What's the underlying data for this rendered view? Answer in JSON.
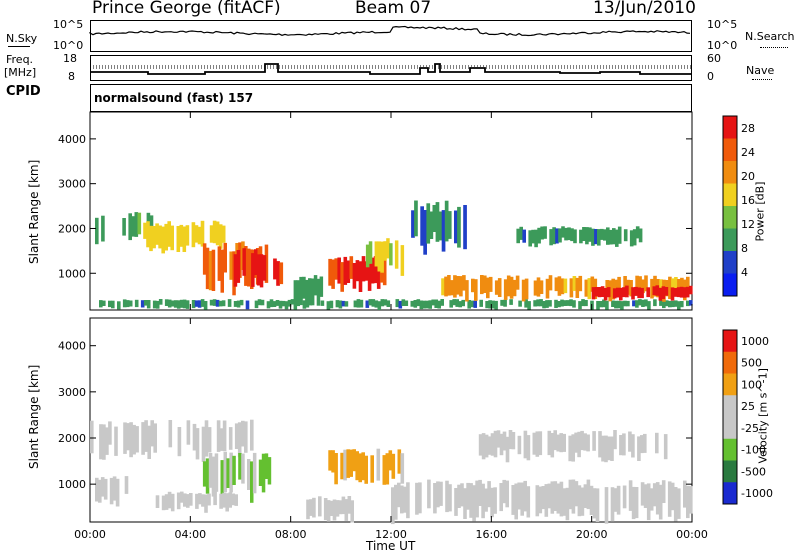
{
  "header": {
    "station": "Prince George (fitACF)",
    "beam": "Beam 07",
    "date": "13/Jun/2010"
  },
  "side_labels": {
    "nsky": "N.Sky",
    "nsearch": "N.Search",
    "freq": "Freq.",
    "freq_unit": "[MHz]",
    "nave": "Nave",
    "cpid": "CPID"
  },
  "noise_axis": {
    "left_top": "10^5",
    "left_bottom": "10^0",
    "right_top": "10^5",
    "right_bottom": "10^0"
  },
  "freq_axis": {
    "left_top": "18",
    "left_bottom": "8",
    "right_top": "60",
    "right_bottom": "0"
  },
  "cpid_text": "normalsound (fast) 157",
  "colors": {
    "power": [
      "#0a1ef0",
      "#2040c8",
      "#3c9a5a",
      "#78c040",
      "#f0d020",
      "#f08c10",
      "#f05a0a",
      "#e61414"
    ],
    "velocity": [
      "#e61414",
      "#f06a0a",
      "#f0a014",
      "#c8c8c8",
      "#c8c8c8",
      "#64c030",
      "#2a7a40",
      "#1a2ad0"
    ],
    "axis": "#000000"
  },
  "chart_data": [
    {
      "type": "heatmap",
      "title": "",
      "xlabel": "Time UT",
      "ylabel": "Slant Range [km]",
      "x_ticks": [
        "00:00",
        "04:00",
        "08:00",
        "12:00",
        "16:00",
        "20:00",
        "00:00"
      ],
      "y_ticks": [
        "1000",
        "2000",
        "3000",
        "4000"
      ],
      "xlim_hours": [
        0,
        24
      ],
      "ylim_km": [
        180,
        4600
      ],
      "colorbar": {
        "label": "Power [dB]",
        "ticks": [
          "4",
          "8",
          "12",
          "16",
          "20",
          "24",
          "28"
        ],
        "range": [
          0,
          30
        ]
      },
      "bands": [
        {
          "t0": 0.2,
          "t1": 2.5,
          "r0": 1700,
          "r1": 2300,
          "value": 10
        },
        {
          "t0": 2.0,
          "t1": 5.5,
          "r0": 1500,
          "r1": 2100,
          "value": 17
        },
        {
          "t0": 4.5,
          "t1": 7.2,
          "r0": 600,
          "r1": 1600,
          "value": 24
        },
        {
          "t0": 5.5,
          "t1": 7.0,
          "r0": 700,
          "r1": 1500,
          "value": 29
        },
        {
          "t0": 7.3,
          "t1": 7.8,
          "r0": 600,
          "r1": 1300,
          "value": 27
        },
        {
          "t0": 8.0,
          "t1": 9.5,
          "r0": 200,
          "r1": 900,
          "value": 9
        },
        {
          "t0": 9.5,
          "t1": 11.8,
          "r0": 600,
          "r1": 1300,
          "value": 26
        },
        {
          "t0": 11.0,
          "t1": 12.5,
          "r0": 1000,
          "r1": 1700,
          "value": 15
        },
        {
          "t0": 0.0,
          "t1": 24.0,
          "r0": 200,
          "r1": 400,
          "value": 9
        },
        {
          "t0": 14.0,
          "t1": 24.0,
          "r0": 400,
          "r1": 900,
          "value": 20
        },
        {
          "t0": 20.0,
          "t1": 24.0,
          "r0": 400,
          "r1": 700,
          "value": 28
        },
        {
          "t0": 12.8,
          "t1": 15.0,
          "r0": 1500,
          "r1": 2500,
          "value": 8
        },
        {
          "t0": 17.0,
          "t1": 22.0,
          "r0": 1600,
          "r1": 2000,
          "value": 9
        }
      ]
    },
    {
      "type": "heatmap",
      "title": "",
      "xlabel": "Time UT",
      "ylabel": "Slant Range [km]",
      "x_ticks": [
        "00:00",
        "04:00",
        "08:00",
        "12:00",
        "16:00",
        "20:00",
        "00:00"
      ],
      "y_ticks": [
        "1000",
        "2000",
        "3000",
        "4000"
      ],
      "xlim_hours": [
        0,
        24
      ],
      "ylim_km": [
        180,
        4600
      ],
      "colorbar": {
        "label": "Velocity [m s^-1]",
        "ticks": [
          "1000",
          "500",
          "100",
          "25",
          "-25",
          "-100",
          "-500",
          "-1000"
        ],
        "range": [
          -1000,
          1000
        ]
      },
      "bands": [
        {
          "t0": 0.0,
          "t1": 6.5,
          "r0": 1500,
          "r1": 2300,
          "value": 0
        },
        {
          "t0": 4.5,
          "t1": 7.2,
          "r0": 700,
          "r1": 1600,
          "value": -300
        },
        {
          "t0": 2.5,
          "t1": 6.0,
          "r0": 400,
          "r1": 800,
          "value": -120
        },
        {
          "t0": 0.2,
          "t1": 1.5,
          "r0": 500,
          "r1": 1100,
          "value": 0
        },
        {
          "t0": 9.5,
          "t1": 12.5,
          "r0": 1000,
          "r1": 1700,
          "value": 300
        },
        {
          "t0": 8.5,
          "t1": 10.5,
          "r0": 200,
          "r1": 700,
          "value": 120
        },
        {
          "t0": 12.0,
          "t1": 24.0,
          "r0": 200,
          "r1": 1000,
          "value": 0
        },
        {
          "t0": 15.5,
          "t1": 23.0,
          "r0": 1500,
          "r1": 2100,
          "value": 0
        }
      ]
    }
  ],
  "time_label": "Time UT"
}
